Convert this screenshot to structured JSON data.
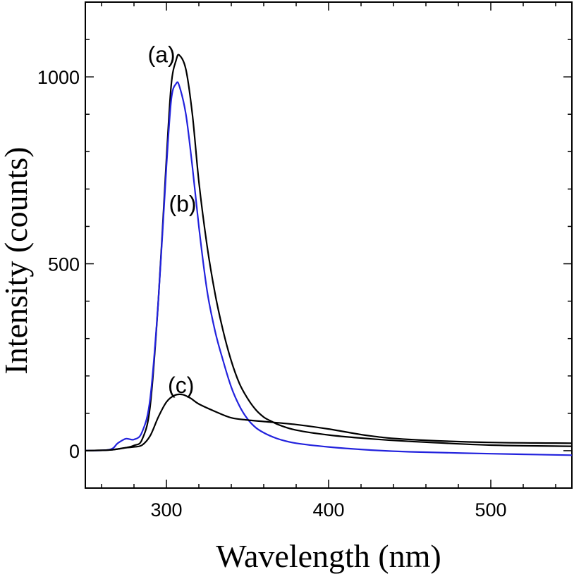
{
  "chart_data": {
    "type": "line",
    "xlabel": "Wavelength (nm)",
    "ylabel": "Intensity (counts)",
    "xlim": [
      250,
      550
    ],
    "ylim": [
      -100,
      1200
    ],
    "x_ticks": [
      300,
      400,
      500
    ],
    "y_ticks": [
      0,
      500,
      1000
    ],
    "grid": false,
    "series": [
      {
        "name": "(a)",
        "color": "#000000",
        "x": [
          250,
          265,
          275,
          280,
          285,
          290,
          295,
          300,
          303,
          306,
          308,
          312,
          316,
          320,
          325,
          330,
          335,
          340,
          345,
          350,
          355,
          360,
          365,
          370,
          380,
          400,
          425,
          450,
          500,
          550
        ],
        "y": [
          0,
          2,
          8,
          14,
          30,
          120,
          400,
          780,
          980,
          1045,
          1058,
          1020,
          900,
          720,
          550,
          420,
          320,
          240,
          180,
          140,
          110,
          90,
          78,
          68,
          55,
          42,
          32,
          25,
          15,
          12
        ]
      },
      {
        "name": "(b)",
        "color": "#2222dd",
        "x": [
          250,
          265,
          270,
          275,
          280,
          285,
          290,
          295,
          300,
          303,
          306,
          308,
          312,
          316,
          320,
          325,
          330,
          335,
          340,
          345,
          350,
          355,
          360,
          365,
          370,
          380,
          400,
          425,
          450,
          500,
          550
        ],
        "y": [
          0,
          3,
          20,
          32,
          30,
          50,
          140,
          400,
          760,
          940,
          982,
          975,
          900,
          760,
          600,
          430,
          320,
          240,
          170,
          120,
          85,
          62,
          48,
          38,
          30,
          20,
          10,
          2,
          -3,
          -8,
          -12
        ]
      },
      {
        "name": "(c)",
        "color": "#000000",
        "x": [
          250,
          265,
          275,
          280,
          285,
          290,
          295,
          300,
          305,
          310,
          315,
          320,
          330,
          340,
          350,
          360,
          380,
          400,
          425,
          450,
          500,
          550
        ],
        "y": [
          0,
          2,
          8,
          10,
          15,
          40,
          90,
          130,
          148,
          150,
          140,
          125,
          105,
          88,
          82,
          78,
          70,
          58,
          40,
          30,
          22,
          20
        ]
      }
    ],
    "annotations": [
      {
        "text": "(a)",
        "x": 297,
        "y": 1060
      },
      {
        "text": "(b)",
        "x": 310,
        "y": 660
      },
      {
        "text": "(c)",
        "x": 309,
        "y": 175
      }
    ]
  }
}
